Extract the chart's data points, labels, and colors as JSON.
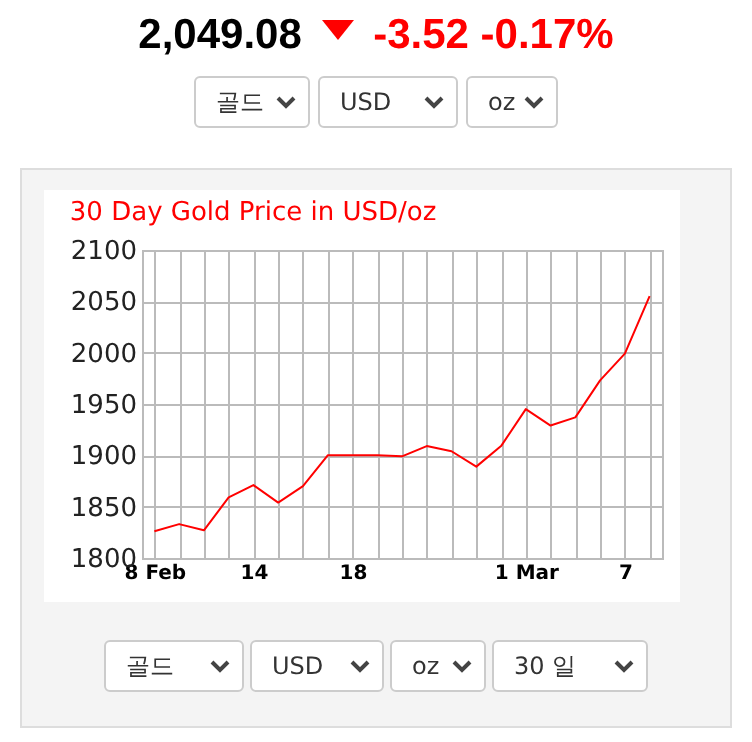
{
  "chart_data": {
    "type": "line",
    "title": "30 Day Gold Price in USD/oz",
    "categories": [
      "8 Feb",
      null,
      null,
      null,
      "14",
      null,
      null,
      null,
      "18",
      null,
      null,
      null,
      null,
      null,
      null,
      "1 Mar",
      null,
      null,
      null,
      "7",
      null
    ],
    "series": [
      {
        "color": "#ff0000",
        "values": [
          1826,
          1833,
          1827,
          1859,
          1871,
          1854,
          1870,
          1900,
          1900,
          1900,
          1899,
          1909,
          1904,
          1889,
          1909,
          1945,
          1929,
          1937,
          1973,
          1999,
          2055
        ]
      }
    ],
    "ylim": [
      1800,
      2100
    ],
    "yticks": [
      1800,
      1850,
      1900,
      1950,
      2000,
      2050,
      2100
    ],
    "grid": true,
    "legend": false,
    "marker": "none",
    "line_style": "solid",
    "annotations": [
      "2,049.08",
      "-3.52 -0.17%",
      "골드",
      "USD",
      "oz",
      "골드",
      "USD",
      "oz",
      "30 일"
    ]
  }
}
